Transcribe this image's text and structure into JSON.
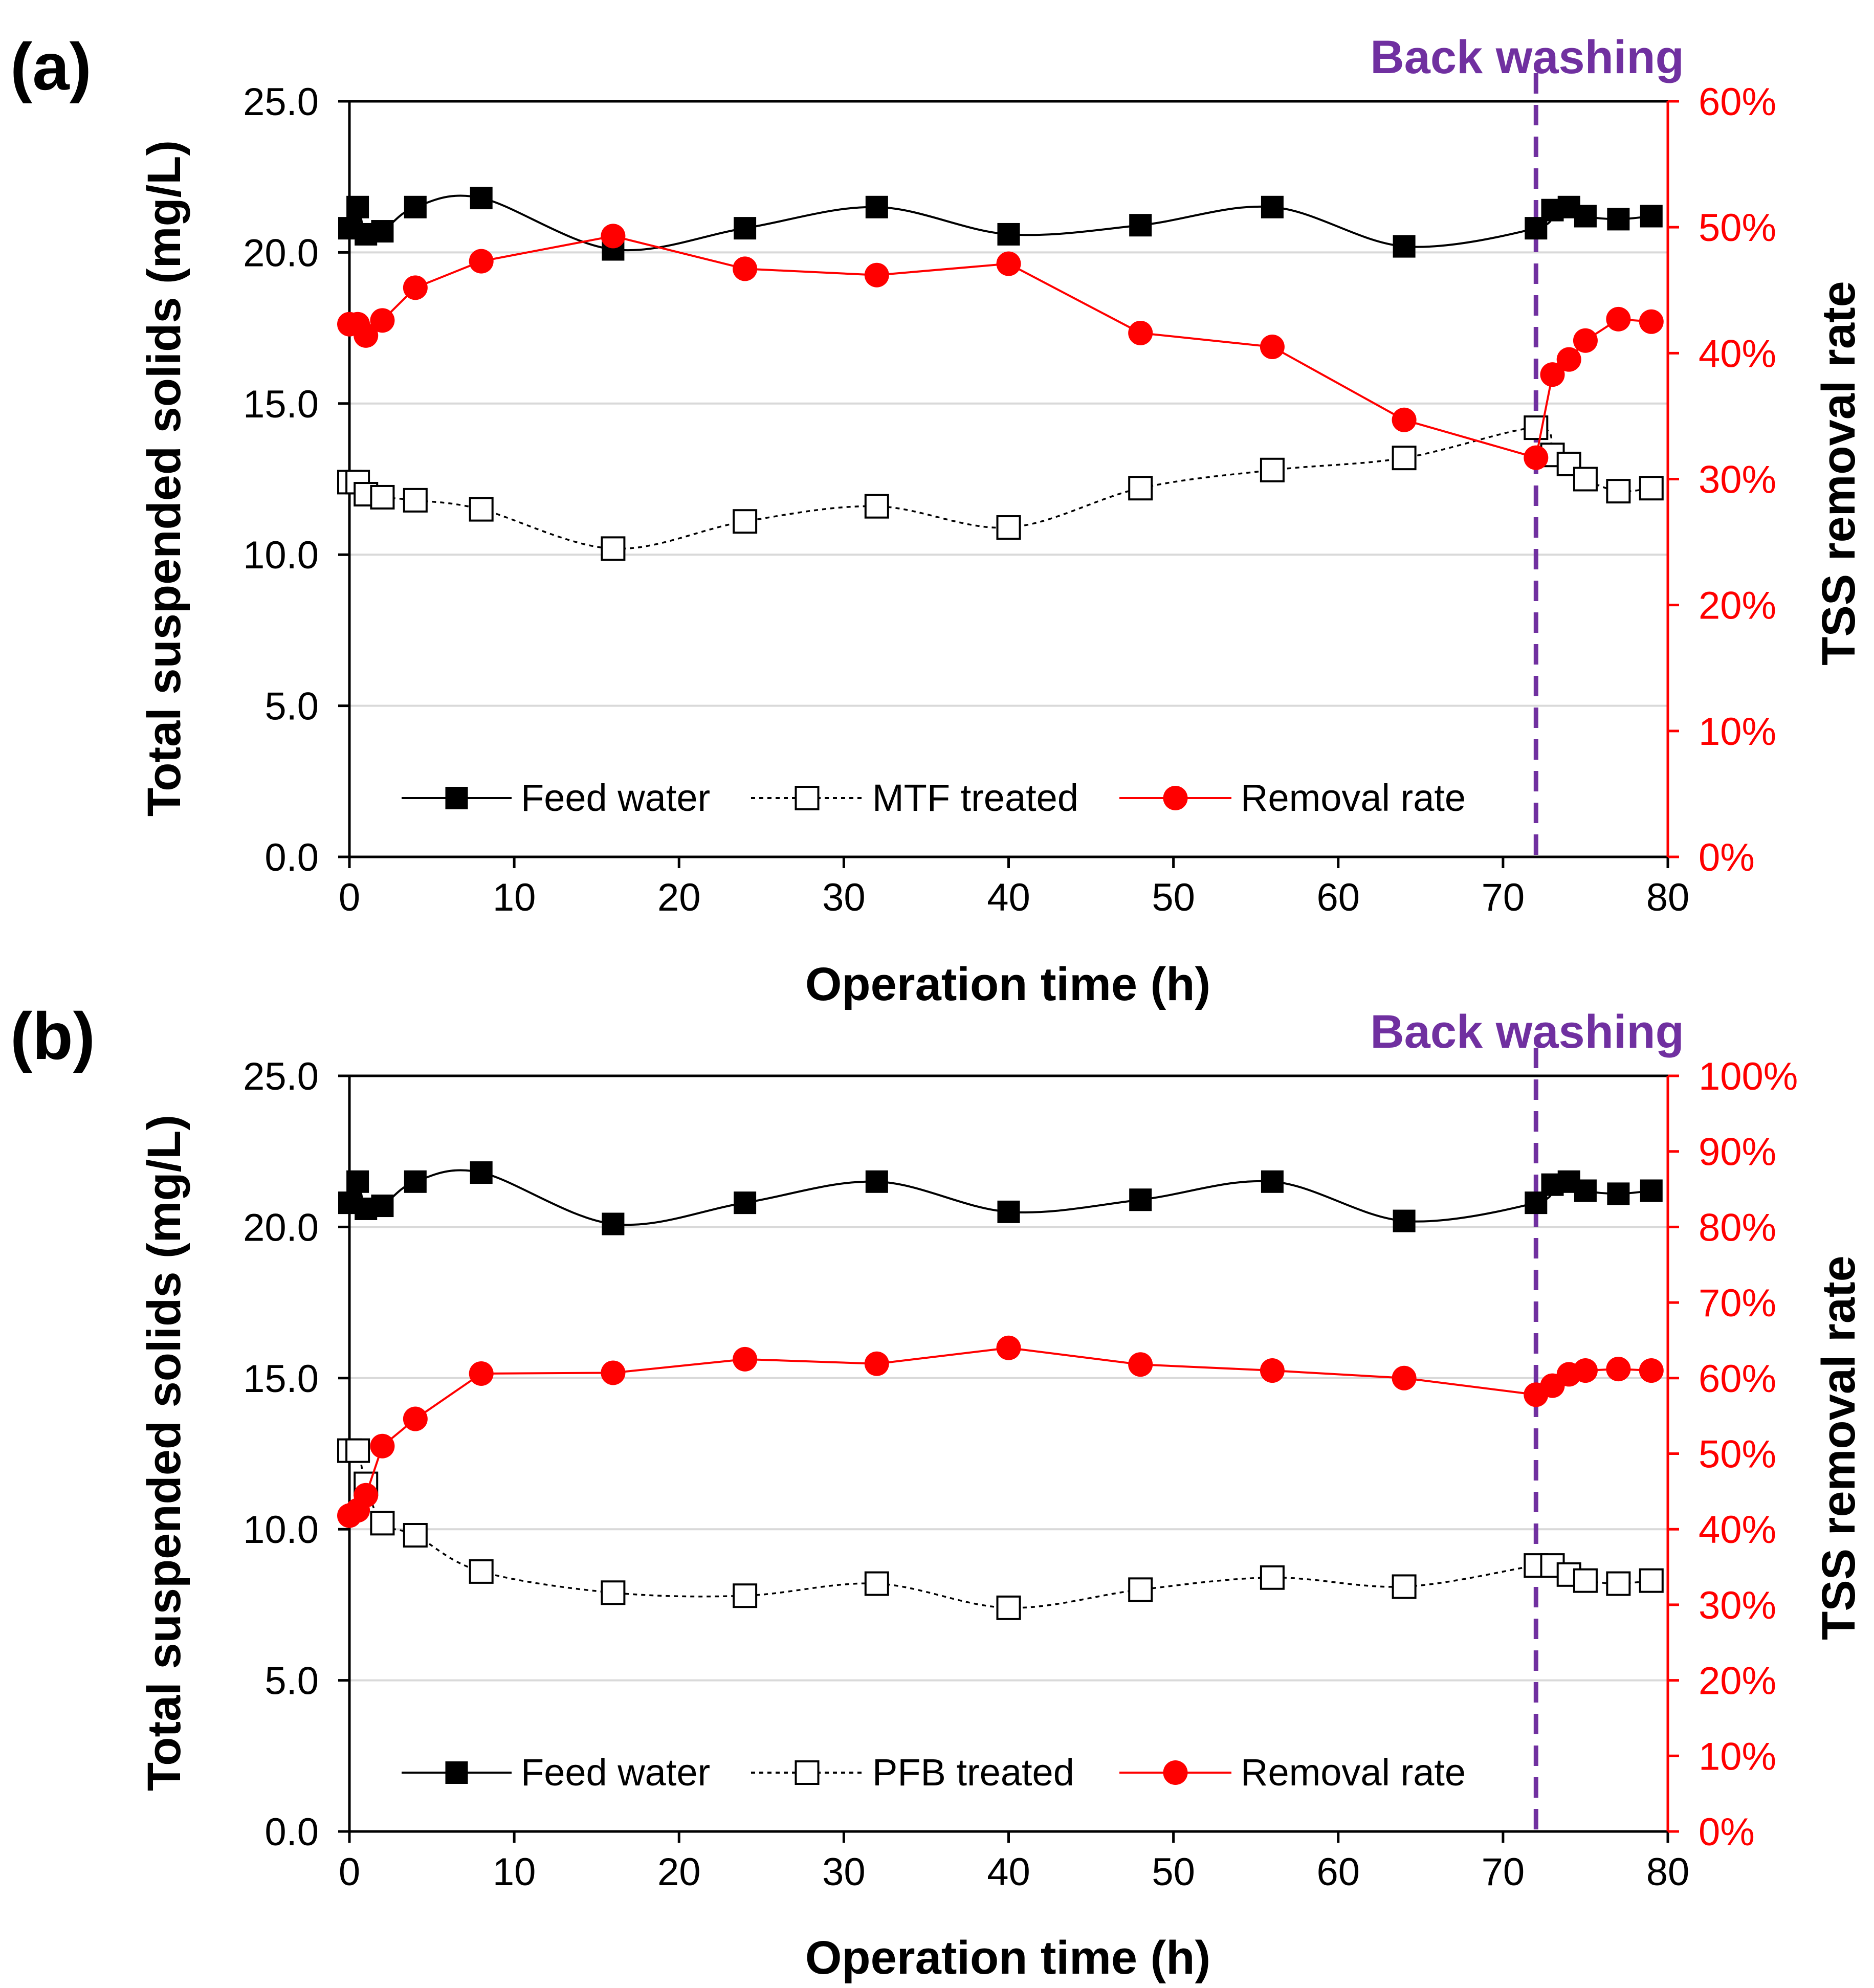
{
  "colors": {
    "feed": "#000000",
    "treated": "#000000",
    "removal": "#ff0000",
    "backwash": "#7030a0",
    "grid": "#d9d9d9",
    "axis": "#000000",
    "right_axis": "#ff0000"
  },
  "chart_data": [
    {
      "panel_label": "(a)",
      "type": "line",
      "title": "",
      "xlabel": "Operation time (h)",
      "ylabel": "Total suspended solids (mg/L)",
      "y2label": "TSS removal rate",
      "xlim": [
        0,
        80
      ],
      "ylim": [
        0,
        25
      ],
      "y2lim": [
        0,
        60
      ],
      "x_ticks": [
        0,
        10,
        20,
        30,
        40,
        50,
        60,
        70,
        80
      ],
      "y_ticks": [
        0,
        5,
        10,
        15,
        20,
        25
      ],
      "y_tick_labels": [
        "0.0",
        "5.0",
        "10.0",
        "15.0",
        "20.0",
        "25.0"
      ],
      "y2_ticks": [
        0,
        10,
        20,
        30,
        40,
        50,
        60
      ],
      "y2_tick_labels": [
        "0%",
        "10%",
        "20%",
        "30%",
        "40%",
        "50%",
        "60%"
      ],
      "grid": true,
      "backwash": {
        "x": 72,
        "label": "Back washing"
      },
      "legend": [
        "Feed water",
        "MTF treated",
        "Removal rate"
      ],
      "series": [
        {
          "name": "Feed water",
          "axis": "left",
          "marker": "filled-square",
          "line": "solid-smooth",
          "x": [
            0,
            0.5,
            1,
            2,
            4,
            8,
            16,
            24,
            32,
            40,
            48,
            56,
            64,
            72,
            73,
            74,
            75,
            77,
            79
          ],
          "values": [
            20.8,
            21.5,
            20.6,
            20.7,
            21.5,
            21.8,
            20.1,
            20.8,
            21.5,
            20.6,
            20.9,
            21.5,
            20.2,
            20.8,
            21.4,
            21.5,
            21.2,
            21.1,
            21.2
          ]
        },
        {
          "name": "MTF treated",
          "axis": "left",
          "marker": "open-square",
          "line": "dotted-smooth",
          "x": [
            0,
            0.5,
            1,
            2,
            4,
            8,
            16,
            24,
            32,
            40,
            48,
            56,
            64,
            72,
            73,
            74,
            75,
            77,
            79
          ],
          "values": [
            12.4,
            12.4,
            12.0,
            11.9,
            11.8,
            11.5,
            10.2,
            11.1,
            11.6,
            10.9,
            12.2,
            12.8,
            13.2,
            14.2,
            13.3,
            13.0,
            12.5,
            12.1,
            12.2
          ]
        },
        {
          "name": "Removal rate",
          "axis": "right",
          "marker": "filled-circle",
          "line": "solid",
          "x": [
            0,
            0.5,
            1,
            2,
            4,
            8,
            16,
            24,
            32,
            40,
            48,
            56,
            64,
            72,
            73,
            74,
            75,
            77,
            79
          ],
          "values": [
            42.3,
            42.3,
            41.4,
            42.6,
            45.2,
            47.3,
            49.3,
            46.7,
            46.2,
            47.1,
            41.6,
            40.5,
            34.7,
            31.7,
            38.3,
            39.5,
            41.0,
            42.7,
            42.5
          ]
        }
      ]
    },
    {
      "panel_label": "(b)",
      "type": "line",
      "title": "",
      "xlabel": "Operation time (h)",
      "ylabel": "Total suspended solids (mg/L)",
      "y2label": "TSS removal rate",
      "xlim": [
        0,
        80
      ],
      "ylim": [
        0,
        25
      ],
      "y2lim": [
        0,
        100
      ],
      "x_ticks": [
        0,
        10,
        20,
        30,
        40,
        50,
        60,
        70,
        80
      ],
      "y_ticks": [
        0,
        5,
        10,
        15,
        20,
        25
      ],
      "y_tick_labels": [
        "0.0",
        "5.0",
        "10.0",
        "15.0",
        "20.0",
        "25.0"
      ],
      "y2_ticks": [
        0,
        10,
        20,
        30,
        40,
        50,
        60,
        70,
        80,
        90,
        100
      ],
      "y2_tick_labels": [
        "0%",
        "10%",
        "20%",
        "30%",
        "40%",
        "50%",
        "60%",
        "70%",
        "80%",
        "90%",
        "100%"
      ],
      "grid": true,
      "backwash": {
        "x": 72,
        "label": "Back washing"
      },
      "legend": [
        "Feed water",
        "PFB treated",
        "Removal rate"
      ],
      "series": [
        {
          "name": "Feed water",
          "axis": "left",
          "marker": "filled-square",
          "line": "solid-smooth",
          "x": [
            0,
            0.5,
            1,
            2,
            4,
            8,
            16,
            24,
            32,
            40,
            48,
            56,
            64,
            72,
            73,
            74,
            75,
            77,
            79
          ],
          "values": [
            20.8,
            21.5,
            20.6,
            20.7,
            21.5,
            21.8,
            20.1,
            20.8,
            21.5,
            20.5,
            20.9,
            21.5,
            20.2,
            20.8,
            21.4,
            21.5,
            21.2,
            21.1,
            21.2
          ]
        },
        {
          "name": "PFB treated",
          "axis": "left",
          "marker": "open-square",
          "line": "dotted-smooth",
          "x": [
            0,
            0.5,
            1,
            2,
            4,
            8,
            16,
            24,
            32,
            40,
            48,
            56,
            64,
            72,
            73,
            74,
            75,
            77,
            79
          ],
          "values": [
            12.6,
            12.6,
            11.5,
            10.2,
            9.8,
            8.6,
            7.9,
            7.8,
            8.2,
            7.4,
            8.0,
            8.4,
            8.1,
            8.8,
            8.8,
            8.5,
            8.3,
            8.2,
            8.3
          ]
        },
        {
          "name": "Removal rate",
          "axis": "right",
          "marker": "filled-circle",
          "line": "solid",
          "x": [
            0,
            0.5,
            1,
            2,
            4,
            8,
            16,
            24,
            32,
            40,
            48,
            56,
            64,
            72,
            73,
            74,
            75,
            77,
            79
          ],
          "values": [
            41.8,
            42.5,
            44.5,
            51.0,
            54.6,
            60.6,
            60.7,
            62.5,
            61.9,
            64.0,
            61.8,
            61.0,
            60.0,
            57.8,
            59.0,
            60.5,
            61.0,
            61.2,
            61.0
          ]
        }
      ]
    }
  ]
}
